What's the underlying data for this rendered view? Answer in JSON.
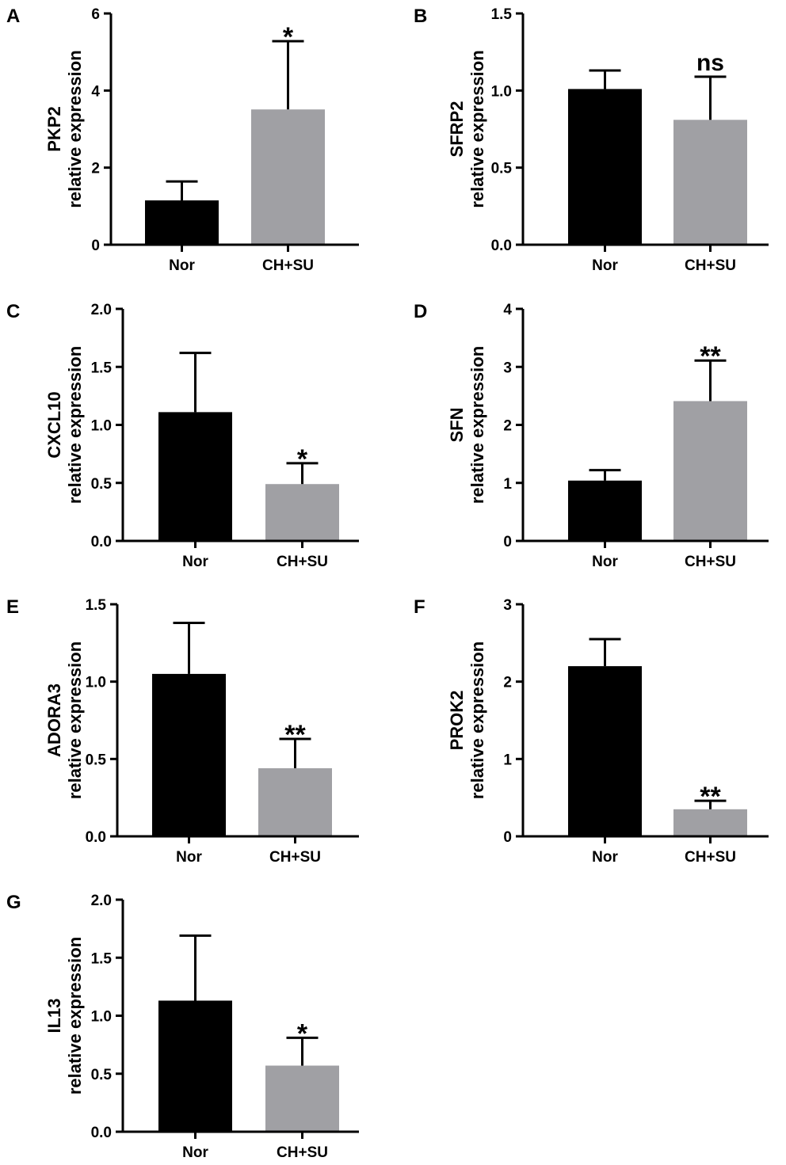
{
  "colors": {
    "Nor": "#000000",
    "CH+SU": "#a0a0a4",
    "axis": "#000000"
  },
  "chart_data": [
    {
      "type": "bar",
      "panel": "A",
      "gene": "PKP2",
      "ylabel": "relative expression",
      "categories": [
        "Nor",
        "CH+SU"
      ],
      "values": [
        1.15,
        3.51
      ],
      "errors_upper": [
        1.64,
        5.28
      ],
      "ylim": [
        0,
        6
      ],
      "yticks": [
        "0",
        "2",
        "4",
        "6"
      ],
      "tickvals": [
        0,
        2,
        4,
        6
      ],
      "significance": "*"
    },
    {
      "type": "bar",
      "panel": "B",
      "gene": "SFRP2",
      "ylabel": "relative expression",
      "categories": [
        "Nor",
        "CH+SU"
      ],
      "values": [
        1.01,
        0.81
      ],
      "errors_upper": [
        1.13,
        1.09
      ],
      "ylim": [
        0,
        1.5
      ],
      "yticks": [
        "0.0",
        "0.5",
        "1.0",
        "1.5"
      ],
      "tickvals": [
        0,
        0.5,
        1,
        1.5
      ],
      "significance": "ns"
    },
    {
      "type": "bar",
      "panel": "C",
      "gene": "CXCL10",
      "ylabel": "relative expression",
      "categories": [
        "Nor",
        "CH+SU"
      ],
      "values": [
        1.11,
        0.49
      ],
      "errors_upper": [
        1.62,
        0.67
      ],
      "ylim": [
        0,
        2
      ],
      "yticks": [
        "0.0",
        "0.5",
        "1.0",
        "1.5",
        "2.0"
      ],
      "tickvals": [
        0,
        0.5,
        1,
        1.5,
        2
      ],
      "significance": "*"
    },
    {
      "type": "bar",
      "panel": "D",
      "gene": "SFN",
      "ylabel": "relative expression",
      "categories": [
        "Nor",
        "CH+SU"
      ],
      "values": [
        1.04,
        2.41
      ],
      "errors_upper": [
        1.22,
        3.11
      ],
      "ylim": [
        0,
        4
      ],
      "yticks": [
        "0",
        "1",
        "2",
        "3",
        "4"
      ],
      "tickvals": [
        0,
        1,
        2,
        3,
        4
      ],
      "significance": "**"
    },
    {
      "type": "bar",
      "panel": "E",
      "gene": "ADORA3",
      "ylabel": "relative expression",
      "categories": [
        "Nor",
        "CH+SU"
      ],
      "values": [
        1.05,
        0.44
      ],
      "errors_upper": [
        1.38,
        0.63
      ],
      "ylim": [
        0,
        1.5
      ],
      "yticks": [
        "0.0",
        "0.5",
        "1.0",
        "1.5"
      ],
      "tickvals": [
        0,
        0.5,
        1,
        1.5
      ],
      "significance": "**"
    },
    {
      "type": "bar",
      "panel": "F",
      "gene": "PROK2",
      "ylabel": "relative expression",
      "categories": [
        "Nor",
        "CH+SU"
      ],
      "values": [
        2.2,
        0.35
      ],
      "errors_upper": [
        2.55,
        0.46
      ],
      "ylim": [
        0,
        3
      ],
      "yticks": [
        "0",
        "1",
        "2",
        "3"
      ],
      "tickvals": [
        0,
        1,
        2,
        3
      ],
      "significance": "**"
    },
    {
      "type": "bar",
      "panel": "G",
      "gene": "IL13",
      "ylabel": "relative expression",
      "categories": [
        "Nor",
        "CH+SU"
      ],
      "values": [
        1.13,
        0.57
      ],
      "errors_upper": [
        1.69,
        0.81
      ],
      "ylim": [
        0,
        2
      ],
      "yticks": [
        "0.0",
        "0.5",
        "1.0",
        "1.5",
        "2.0"
      ],
      "tickvals": [
        0,
        0.5,
        1,
        1.5,
        2
      ],
      "significance": "*"
    }
  ]
}
